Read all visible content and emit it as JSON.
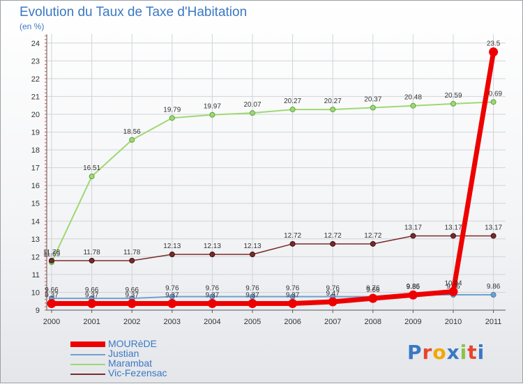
{
  "title": "Evolution du Taux de Taxe d'Habitation",
  "subtitle": "(en %)",
  "logo": {
    "text": "Proxiti",
    "colors": [
      "#3a78c4",
      "#e8452c",
      "#f2a800",
      "#3a78c4",
      "#8bc34a",
      "#e8452c",
      "#3a78c4"
    ]
  },
  "chart_data": {
    "type": "line",
    "categories": [
      "2000",
      "2001",
      "2002",
      "2003",
      "2004",
      "2005",
      "2006",
      "2007",
      "2008",
      "2009",
      "2010",
      "2011"
    ],
    "ylim": [
      9,
      24.5
    ],
    "yticks": [
      9,
      10,
      11,
      12,
      13,
      14,
      15,
      16,
      17,
      18,
      19,
      20,
      21,
      22,
      23,
      24
    ],
    "series": [
      {
        "name": "Justian",
        "color": "#6fa1d0",
        "values": [
          9.66,
          9.66,
          9.66,
          9.76,
          9.76,
          9.76,
          9.76,
          9.76,
          9.76,
          9.86,
          9.86,
          9.86
        ],
        "labels": [
          "9.66",
          "9.66",
          "9.66",
          "9.76",
          "9.76",
          "9.76",
          "9.76",
          "9.76",
          "9.76",
          "9.86",
          "9.86",
          "9.86"
        ]
      },
      {
        "name": "Marambat",
        "color": "#9ed873",
        "values": [
          11.69,
          16.51,
          18.56,
          19.79,
          19.97,
          20.07,
          20.27,
          20.27,
          20.37,
          20.48,
          20.59,
          20.69
        ],
        "labels": [
          "11.69",
          "16.51",
          "18.56",
          "19.79",
          "19.97",
          "20.07",
          "20.27",
          "20.27",
          "20.37",
          "20.48",
          "20.59",
          "20.69"
        ]
      },
      {
        "name": "Vic-Fezensac",
        "color": "#7a2a2a",
        "values": [
          11.78,
          11.78,
          11.78,
          12.13,
          12.13,
          12.13,
          12.72,
          12.72,
          12.72,
          13.17,
          13.17,
          13.17
        ],
        "labels": [
          "11.78",
          "11.78",
          "11.78",
          "12.13",
          "12.13",
          "12.13",
          "12.72",
          "12.72",
          "12.72",
          "13.17",
          "13.17",
          "13.17"
        ]
      },
      {
        "name": "MOURèDE",
        "color": "#ee0000",
        "values": [
          9.37,
          9.37,
          9.37,
          9.37,
          9.37,
          9.37,
          9.37,
          9.47,
          9.66,
          9.85,
          10.04,
          23.5
        ],
        "labels": [
          "9.37",
          "9.37",
          "9.37",
          "9.37",
          "9.37",
          "9.37",
          "9.37",
          "9.47",
          "9.66",
          "9.85",
          "10.04",
          "23.5"
        ]
      }
    ]
  }
}
